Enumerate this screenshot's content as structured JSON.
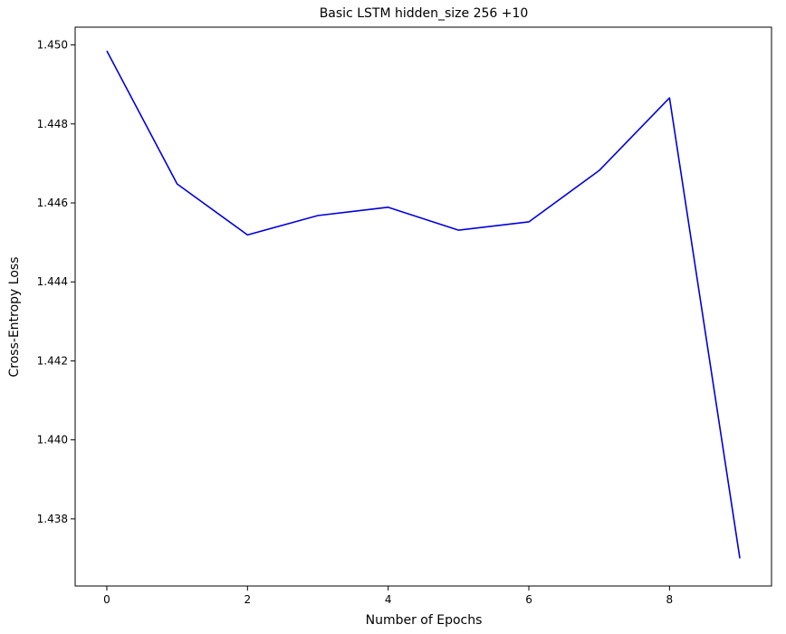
{
  "chart_data": {
    "type": "line",
    "title": "Basic LSTM hidden_size 256 +10",
    "xlabel": "Number of Epochs",
    "ylabel": "Cross-Entropy Loss",
    "xlim": [
      -0.45,
      9.45
    ],
    "ylim": [
      1.4363,
      1.45045
    ],
    "xticks": [
      0,
      2,
      4,
      6,
      8
    ],
    "xtick_labels": [
      "0",
      "2",
      "4",
      "6",
      "8"
    ],
    "yticks": [
      1.438,
      1.44,
      1.442,
      1.444,
      1.446,
      1.448,
      1.45
    ],
    "ytick_labels": [
      "1.438",
      "1.440",
      "1.442",
      "1.444",
      "1.446",
      "1.448",
      "1.450"
    ],
    "grid": false,
    "series": [
      {
        "color": "#0000dd",
        "x": [
          0,
          1,
          2,
          3,
          4,
          5,
          6,
          7,
          8,
          9
        ],
        "y": [
          1.44985,
          1.44648,
          1.44519,
          1.44568,
          1.44589,
          1.44531,
          1.44552,
          1.44682,
          1.44866,
          1.437
        ]
      }
    ]
  }
}
